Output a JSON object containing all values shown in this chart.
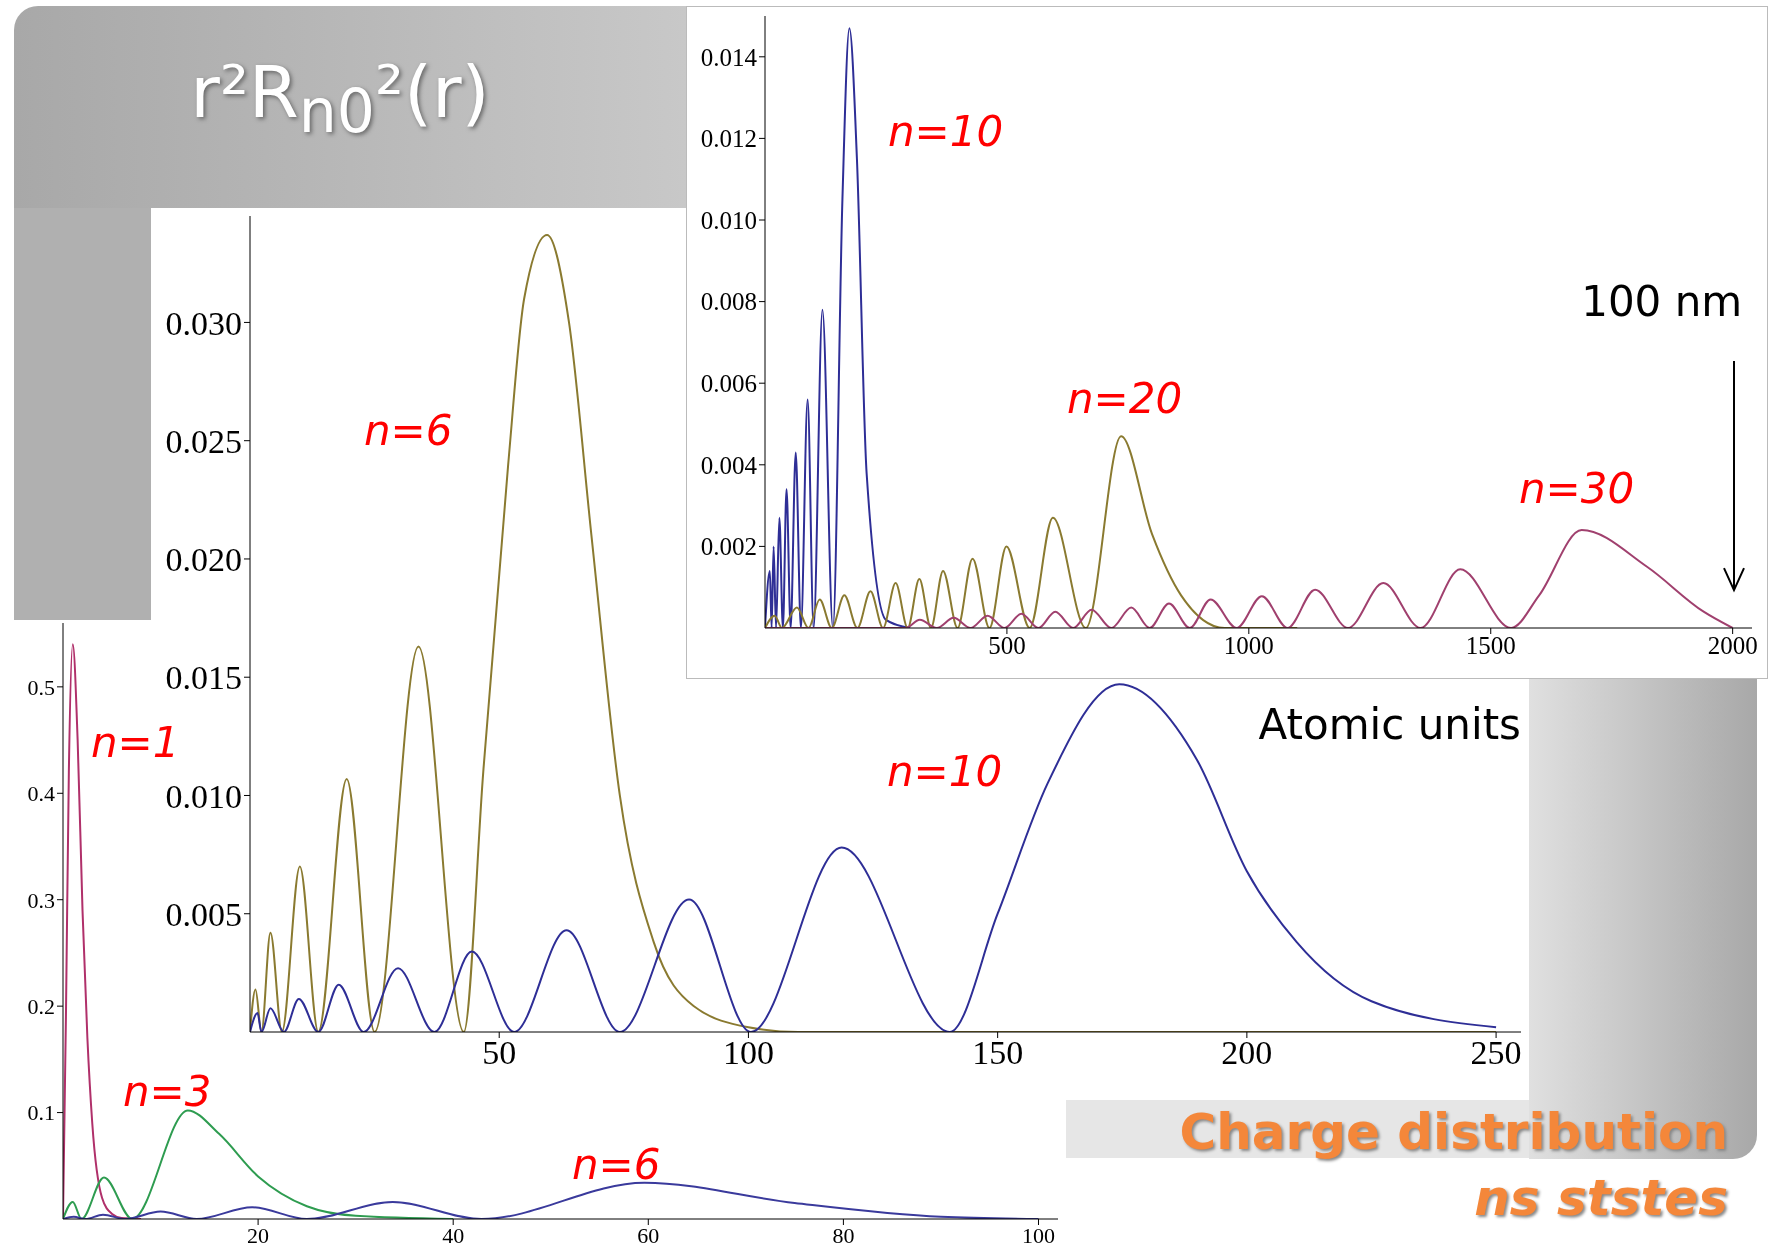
{
  "chart_data": [
    {
      "type": "line",
      "title": "r²R$_{n0}$²(r)",
      "annotations": [
        "Charge distribution",
        "ns ststes"
      ],
      "xlim": [
        0,
        255
      ],
      "ylim": [
        0,
        0.0345
      ],
      "xticks": [
        50,
        100,
        150,
        200,
        250
      ],
      "yticks": [
        0.005,
        {
          "value": 0.01,
          "label": "0.010"
        },
        0.015,
        {
          "value": 0.02,
          "label": "0.020"
        },
        0.025,
        {
          "value": 0.03,
          "label": "0.030"
        }
      ],
      "series": [
        {
          "name": "n=6",
          "color": "#8a7a30",
          "x": [
            0,
            1.1,
            2.3,
            4.1,
            6.4,
            10,
            13.7,
            19.4,
            25,
            33.8,
            42.9,
            46.8,
            51.8,
            55,
            59.6,
            64,
            68.5,
            74.2,
            81,
            89,
            100,
            110,
            250
          ],
          "values": [
            0,
            0.0018,
            0,
            0.0042,
            0,
            0.007,
            0,
            0.0107,
            0,
            0.0163,
            0,
            0.011,
            0.024,
            0.031,
            0.0337,
            0.03,
            0.021,
            0.01,
            0.0038,
            0.0011,
            0.0002,
            0,
            0
          ]
        },
        {
          "name": "n=10",
          "color": "#2e2e96",
          "x": [
            0,
            1.5,
            2.3,
            4.1,
            6.8,
            9.8,
            13.7,
            17.8,
            22.8,
            29.7,
            37,
            44.5,
            53,
            63.5,
            74.2,
            88.1,
            100.5,
            118.7,
            140.4,
            150,
            160,
            174.4,
            190,
            200,
            210,
            225,
            250
          ],
          "values": [
            0,
            0.0008,
            0,
            0.001,
            0,
            0.0014,
            0,
            0.002,
            0,
            0.0027,
            0,
            0.0034,
            0,
            0.0043,
            0,
            0.0056,
            0,
            0.0078,
            0,
            0.005,
            0.0105,
            0.0147,
            0.0115,
            0.0068,
            0.0038,
            0.0013,
            0.0002
          ]
        }
      ]
    },
    {
      "type": "line",
      "xlabel": "Atomic units",
      "annotations": [
        "100 nm"
      ],
      "xlim": [
        0,
        2040
      ],
      "ylim": [
        0,
        0.015
      ],
      "xticks": [
        500,
        1000,
        1500,
        2000
      ],
      "yticks": [
        0.002,
        0.004,
        0.006,
        0.008,
        {
          "value": 0.01,
          "label": "0.010"
        },
        0.012,
        0.014
      ],
      "series": [
        {
          "name": "n=10",
          "color": "#2e2e96",
          "x": [
            0,
            10,
            13.7,
            17.8,
            22.8,
            29.7,
            37,
            44.5,
            53,
            63.5,
            74.2,
            88.1,
            100.5,
            118.7,
            140.4,
            160,
            174.4,
            190,
            210,
            250,
            300
          ],
          "values": [
            0,
            0.0014,
            0,
            0.002,
            0,
            0.0027,
            0,
            0.0034,
            0,
            0.0043,
            0,
            0.0056,
            0,
            0.0078,
            0,
            0.0105,
            0.0147,
            0.0115,
            0.0038,
            0.0002,
            0
          ]
        },
        {
          "name": "n=20",
          "color": "#8a7a30",
          "x": [
            0,
            20,
            35,
            66,
            90,
            113,
            138,
            164,
            191,
            218,
            244,
            270,
            295,
            319,
            343,
            368,
            398,
            429,
            464,
            499,
            547,
            595,
            663,
            736,
            800,
            860,
            950,
            1100
          ],
          "values": [
            0,
            0.0003,
            0,
            0.0005,
            0,
            0.0007,
            0,
            0.0008,
            0,
            0.0009,
            0,
            0.0011,
            0,
            0.0012,
            0,
            0.0014,
            0,
            0.0017,
            0,
            0.002,
            0,
            0.0027,
            0,
            0.0047,
            0.0023,
            0.0008,
            0,
            0
          ]
        },
        {
          "name": "n=30",
          "color": "#a0406e",
          "x": [
            0,
            290,
            320,
            355,
            390,
            425,
            460,
            495,
            530,
            565,
            600,
            637,
            675,
            716,
            757,
            795,
            835,
            878,
            921,
            975,
            1027,
            1080,
            1137,
            1205,
            1278,
            1355,
            1437,
            1542,
            1600,
            1688,
            1823,
            1940,
            2000
          ],
          "values": [
            0,
            0,
            0.0002,
            0,
            0.00025,
            0,
            0.0003,
            0,
            0.00035,
            0,
            0.0004,
            0,
            0.00045,
            0,
            0.0005,
            0,
            0.0006,
            0,
            0.0007,
            0,
            0.00078,
            0,
            0.00094,
            0,
            0.0011,
            0,
            0.00144,
            0,
            0.0008,
            0.0024,
            0.0015,
            0.0004,
            0
          ]
        }
      ]
    },
    {
      "type": "line",
      "xlim": [
        0,
        102
      ],
      "ylim": [
        0,
        0.56
      ],
      "xticks": [
        20,
        40,
        60,
        80,
        100
      ],
      "yticks": [
        0.1,
        0.2,
        0.3,
        0.4,
        0.5
      ],
      "series": [
        {
          "name": "n=1",
          "color": "#b0306a",
          "x": [
            0,
            0.3,
            0.6,
            1,
            1.5,
            2,
            2.5,
            3,
            4,
            5,
            6,
            8
          ],
          "values": [
            0,
            0.19,
            0.42,
            0.54,
            0.45,
            0.29,
            0.17,
            0.09,
            0.02,
            0.005,
            0.001,
            0
          ]
        },
        {
          "name": "n=3",
          "color": "#2e9c50",
          "x": [
            0,
            1,
            1.9,
            4.2,
            7.1,
            12.8,
            16,
            20,
            25,
            30,
            40
          ],
          "values": [
            0,
            0.016,
            0,
            0.039,
            0,
            0.102,
            0.08,
            0.04,
            0.012,
            0.003,
            0
          ]
        },
        {
          "name": "n=6",
          "color": "#3a3a9c",
          "x": [
            0,
            1.1,
            2.3,
            4.1,
            6.4,
            10,
            13.7,
            19.4,
            25,
            33.8,
            42.9,
            59.6,
            75,
            90,
            100
          ],
          "values": [
            0,
            0.002,
            0,
            0.004,
            0,
            0.007,
            0,
            0.011,
            0,
            0.016,
            0,
            0.034,
            0.015,
            0.002,
            0
          ]
        }
      ]
    }
  ]
}
